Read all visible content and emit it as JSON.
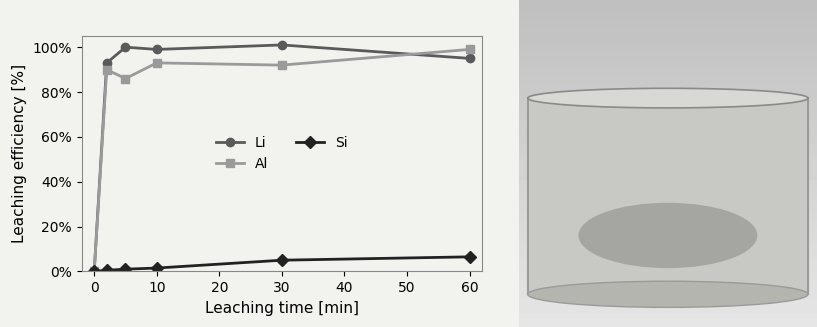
{
  "chart_data": {
    "type": "line",
    "x": [
      0,
      2,
      5,
      10,
      30,
      60
    ],
    "series": [
      {
        "name": "Li",
        "color": "#5a5a5a",
        "marker": "circle",
        "line_style": "solid",
        "values": [
          0,
          93,
          100,
          99,
          101,
          95
        ]
      },
      {
        "name": "Al",
        "color": "#9a9a9a",
        "marker": "square",
        "line_style": "solid",
        "values": [
          0,
          90,
          86,
          93,
          92,
          99
        ]
      },
      {
        "name": "Si",
        "color": "#222222",
        "marker": "diamond",
        "line_style": "solid",
        "values": [
          0,
          0.5,
          1,
          1.5,
          5,
          6.5
        ]
      }
    ],
    "x_label": "Leaching time [min]",
    "y_label": "Leaching efficiency [%]",
    "xlim": [
      -2,
      62
    ],
    "xticks": [
      0,
      10,
      20,
      30,
      40,
      50,
      60
    ],
    "ylim": [
      0,
      105
    ],
    "yticks": [
      {
        "value": 0,
        "label": "0%"
      },
      {
        "value": 20,
        "label": "20%"
      },
      {
        "value": 40,
        "label": "40%"
      },
      {
        "value": 60,
        "label": "60%"
      },
      {
        "value": 80,
        "label": "80%"
      },
      {
        "value": 100,
        "label": "100%"
      }
    ],
    "grid": false,
    "legend": "center"
  }
}
